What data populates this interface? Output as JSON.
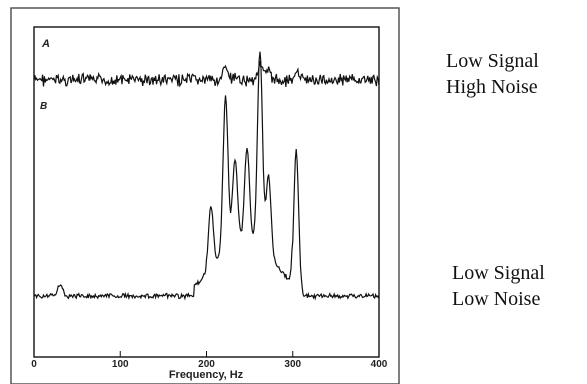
{
  "chart_data": {
    "type": "line",
    "xlabel": "Frequency, Hz",
    "xlim": [
      0,
      400
    ],
    "xticks": [
      0,
      100,
      200,
      300,
      400
    ],
    "grid": false,
    "panels": [
      {
        "label": "A",
        "peaks": [
          {
            "x": 222,
            "height": 0.55
          },
          {
            "x": 262,
            "height": 0.75
          },
          {
            "x": 272,
            "height": 0.35
          },
          {
            "x": 305,
            "height": 0.3
          }
        ]
      },
      {
        "label": "B",
        "peaks": [
          {
            "x": 30,
            "height": 0.06
          },
          {
            "x": 205,
            "height": 0.32
          },
          {
            "x": 222,
            "height": 0.78
          },
          {
            "x": 233,
            "height": 0.42
          },
          {
            "x": 247,
            "height": 0.45
          },
          {
            "x": 262,
            "height": 0.98
          },
          {
            "x": 272,
            "height": 0.4
          },
          {
            "x": 304,
            "height": 0.73
          }
        ]
      }
    ]
  },
  "labels": {
    "top": [
      "Low Signal",
      "High Noise"
    ],
    "bottom": [
      "Low Signal",
      "Low Noise"
    ]
  }
}
